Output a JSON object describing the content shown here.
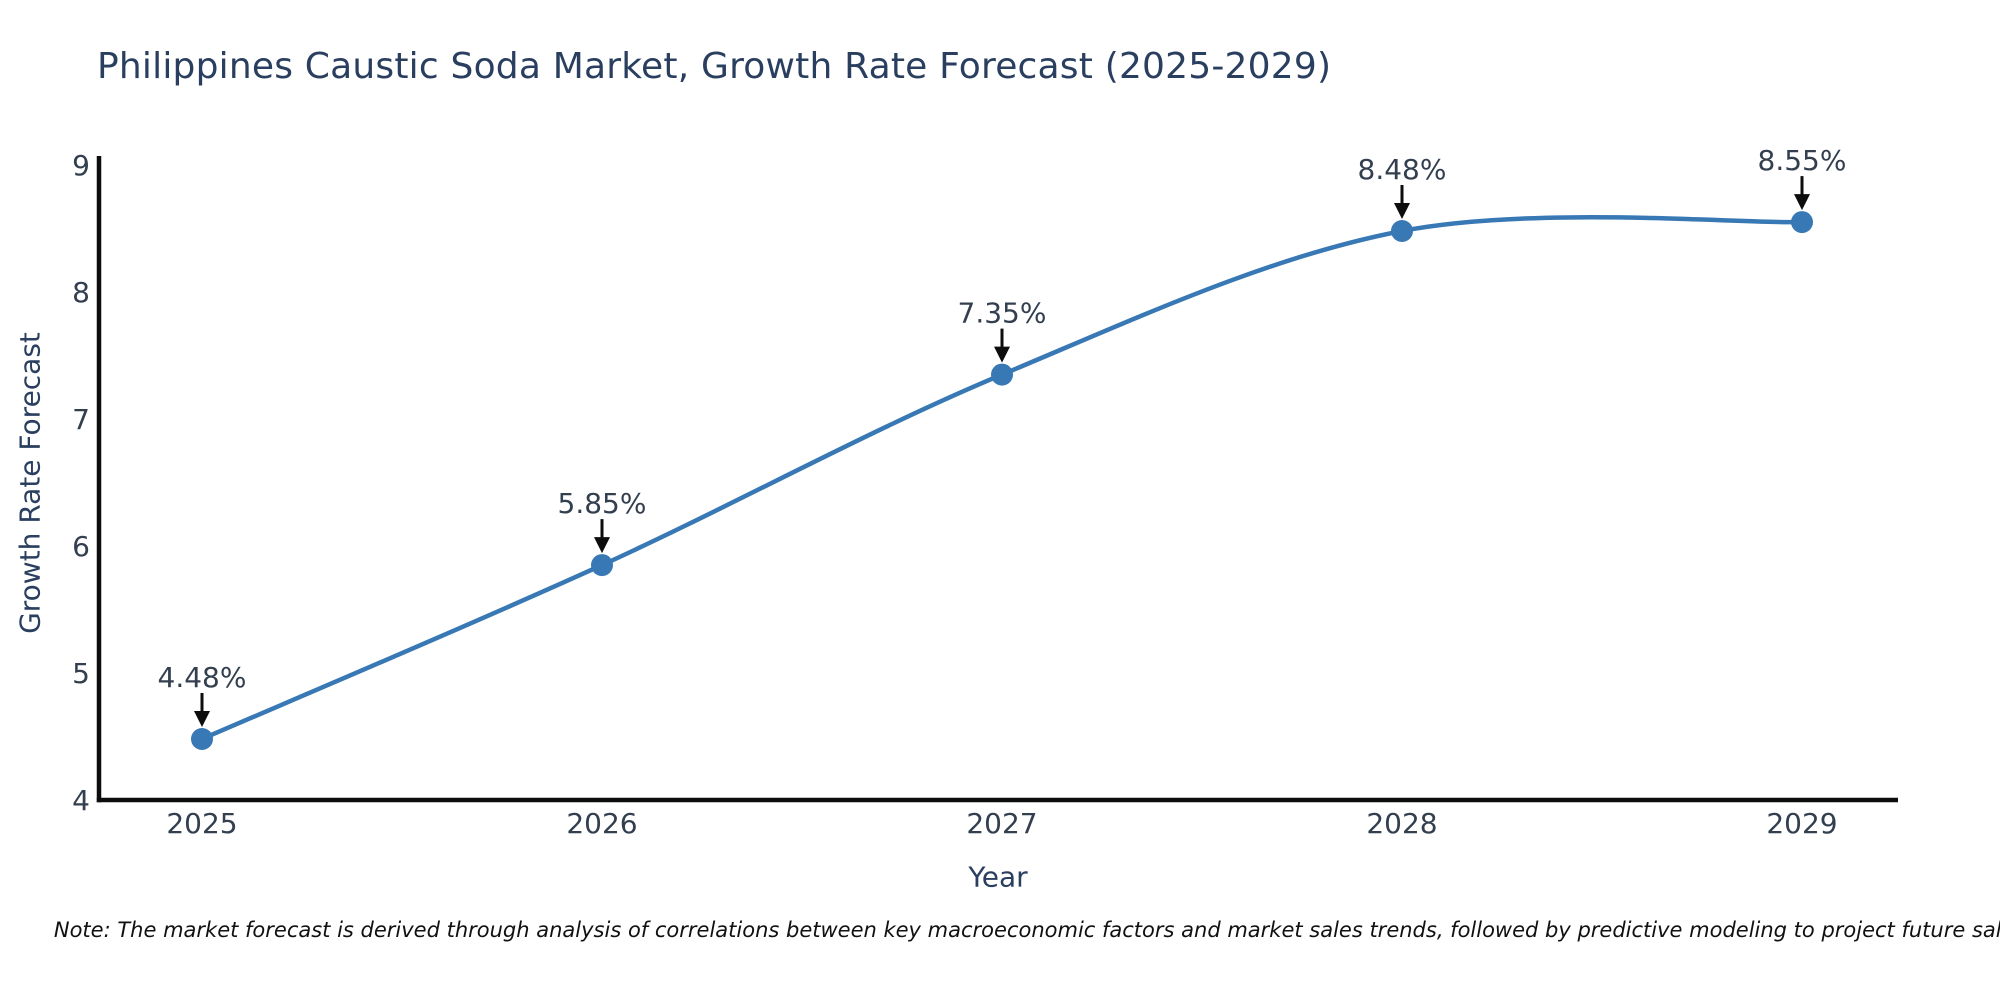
{
  "note": "Note: The market forecast is derived through analysis of correlations between key macroeconomic factors and market sales trends, followed by predictive modeling to project future sales.",
  "chart_data": {
    "type": "line",
    "title": "Philippines Caustic Soda Market, Growth Rate Forecast (2025-2029)",
    "xlabel": "Year",
    "ylabel": "Growth Rate Forecast",
    "x": [
      2025,
      2026,
      2027,
      2028,
      2029
    ],
    "x_tick_labels": [
      "2025",
      "2026",
      "2027",
      "2028",
      "2029"
    ],
    "values": [
      4.48,
      5.85,
      7.35,
      8.48,
      8.55
    ],
    "point_labels": [
      "4.48%",
      "5.85%",
      "7.35%",
      "8.48%",
      "8.55%"
    ],
    "ylim": [
      4,
      9
    ],
    "yticks": [
      4,
      5,
      6,
      7,
      8,
      9
    ],
    "ytick_labels": [
      "4",
      "5",
      "6",
      "7",
      "8",
      "9"
    ],
    "line_shape": "spline",
    "grid": false,
    "legend_position": "none",
    "annotation_style": "label-with-down-arrow",
    "colors": {
      "line": "#3878b4",
      "marker": "#3878b4",
      "axis_line": "#0d0d0d",
      "title_text": "#2a3f5f",
      "tick_text": "#333f4f",
      "annotation_text": "#333f4f",
      "annotation_arrow": "#0d0d0d",
      "background": "#ffffff"
    }
  }
}
